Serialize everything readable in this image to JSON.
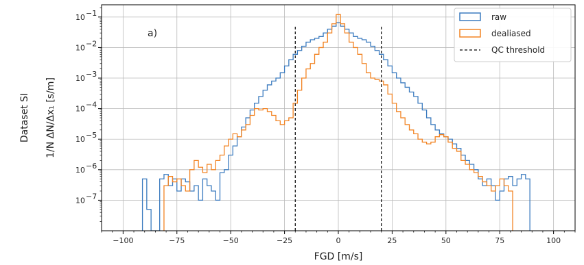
{
  "chart_data": {
    "type": "line",
    "drawstyle": "steps",
    "yscale": "log",
    "xlabel": "FGD [m/s]",
    "ylabel": "1/N ΔN/Δx₁ [s/m]",
    "row_label": "Dataset SI",
    "panel_label": "a)",
    "xlim": [
      -110,
      110
    ],
    "ylim_exp": [
      -8,
      -0.6
    ],
    "xticks": [
      -100,
      -75,
      -50,
      -25,
      0,
      25,
      50,
      75,
      100
    ],
    "xtick_labels": [
      "−100",
      "−75",
      "−50",
      "−25",
      "0",
      "25",
      "50",
      "75",
      "100"
    ],
    "yticks_exp": [
      -7,
      -6,
      -5,
      -4,
      -3,
      -2,
      -1
    ],
    "ytick_labels": [
      "10",
      "10",
      "10",
      "10",
      "10",
      "10",
      "10"
    ],
    "ytick_sups": [
      "−7",
      "−6",
      "−5",
      "−4",
      "−3",
      "−2",
      "−1"
    ],
    "grid": true,
    "legend_position": "top-right",
    "series": [
      {
        "name": "raw",
        "color": "#3b7bbf",
        "x": [
          -90,
          -88,
          -86,
          -84,
          -82,
          -80,
          -78,
          -76,
          -74,
          -72,
          -70,
          -68,
          -66,
          -64,
          -62,
          -60,
          -58,
          -56,
          -54,
          -52,
          -50,
          -48,
          -46,
          -44,
          -42,
          -40,
          -38,
          -36,
          -34,
          -32,
          -30,
          -28,
          -26,
          -24,
          -22,
          -20,
          -18,
          -16,
          -14,
          -12,
          -10,
          -8,
          -6,
          -4,
          -2,
          0,
          2,
          4,
          6,
          8,
          10,
          12,
          14,
          16,
          18,
          20,
          22,
          24,
          26,
          28,
          30,
          32,
          34,
          36,
          38,
          40,
          42,
          44,
          46,
          48,
          50,
          52,
          54,
          56,
          58,
          60,
          62,
          64,
          66,
          68,
          70,
          72,
          74,
          76,
          78,
          80,
          82,
          84,
          86,
          88
        ],
        "y": [
          5e-07,
          5e-08,
          1e-08,
          1e-08,
          5e-07,
          7e-07,
          3e-07,
          5e-07,
          2e-07,
          5e-07,
          4e-07,
          2e-07,
          3e-07,
          1e-07,
          5e-07,
          3e-07,
          2e-07,
          1e-07,
          8e-07,
          1e-06,
          3e-06,
          6e-06,
          1.2e-05,
          2.5e-05,
          5e-05,
          9e-05,
          0.00015,
          0.00025,
          0.0004,
          0.0006,
          0.0008,
          0.001,
          0.0015,
          0.0025,
          0.004,
          0.006,
          0.008,
          0.011,
          0.015,
          0.018,
          0.02,
          0.023,
          0.03,
          0.04,
          0.05,
          0.065,
          0.05,
          0.04,
          0.03,
          0.023,
          0.02,
          0.018,
          0.015,
          0.011,
          0.008,
          0.006,
          0.004,
          0.0025,
          0.0015,
          0.001,
          0.0007,
          0.0005,
          0.00035,
          0.00025,
          0.00015,
          9e-05,
          5e-05,
          3e-05,
          2e-05,
          1.5e-05,
          1.2e-05,
          1e-05,
          7e-06,
          5e-06,
          3e-06,
          2e-06,
          1.5e-06,
          1e-06,
          5e-07,
          3e-07,
          5e-07,
          3e-07,
          1e-07,
          2e-07,
          5e-07,
          6e-07,
          3e-07,
          5e-07,
          7e-07,
          5e-07
        ]
      },
      {
        "name": "dealiased",
        "color": "#f28322",
        "x": [
          -80,
          -78,
          -76,
          -74,
          -72,
          -70,
          -68,
          -66,
          -64,
          -62,
          -60,
          -58,
          -56,
          -54,
          -52,
          -50,
          -48,
          -46,
          -44,
          -42,
          -40,
          -38,
          -36,
          -34,
          -32,
          -30,
          -28,
          -26,
          -24,
          -22,
          -20,
          -18,
          -16,
          -14,
          -12,
          -10,
          -8,
          -6,
          -4,
          -2,
          0,
          2,
          4,
          6,
          8,
          10,
          12,
          14,
          16,
          18,
          20,
          22,
          24,
          26,
          28,
          30,
          32,
          34,
          36,
          38,
          40,
          42,
          44,
          46,
          48,
          50,
          52,
          54,
          56,
          58,
          60,
          62,
          64,
          66,
          68,
          70,
          72,
          74,
          76,
          78,
          80
        ],
        "y": [
          3e-07,
          6e-07,
          4e-07,
          5e-07,
          3e-07,
          2e-07,
          1e-06,
          2e-06,
          1.2e-06,
          8e-07,
          1.5e-06,
          1e-06,
          2e-06,
          3e-06,
          6e-06,
          1e-05,
          1.5e-05,
          1.2e-05,
          2e-05,
          3e-05,
          6e-05,
          0.0001,
          9e-05,
          0.0001,
          8e-05,
          6e-05,
          4e-05,
          3e-05,
          4e-05,
          5e-05,
          0.00015,
          0.0004,
          0.001,
          0.002,
          0.003,
          0.006,
          0.01,
          0.015,
          0.03,
          0.06,
          0.12,
          0.06,
          0.03,
          0.015,
          0.01,
          0.006,
          0.003,
          0.0015,
          0.001,
          0.0009,
          0.0008,
          0.0006,
          0.0003,
          0.00015,
          8e-05,
          5e-05,
          3e-05,
          2e-05,
          1.5e-05,
          1e-05,
          8e-06,
          7e-06,
          8e-06,
          1.2e-05,
          1.4e-05,
          1.2e-05,
          8e-06,
          5e-06,
          4e-06,
          2e-06,
          1.5e-06,
          1e-06,
          8e-07,
          6e-07,
          4e-07,
          3e-07,
          2e-07,
          3e-07,
          5e-07,
          3e-07,
          2e-07
        ]
      },
      {
        "name": "QC threshold",
        "color": "#000000",
        "dashed": true,
        "x": [
          -20,
          20
        ],
        "y_top": 0.05
      }
    ]
  }
}
